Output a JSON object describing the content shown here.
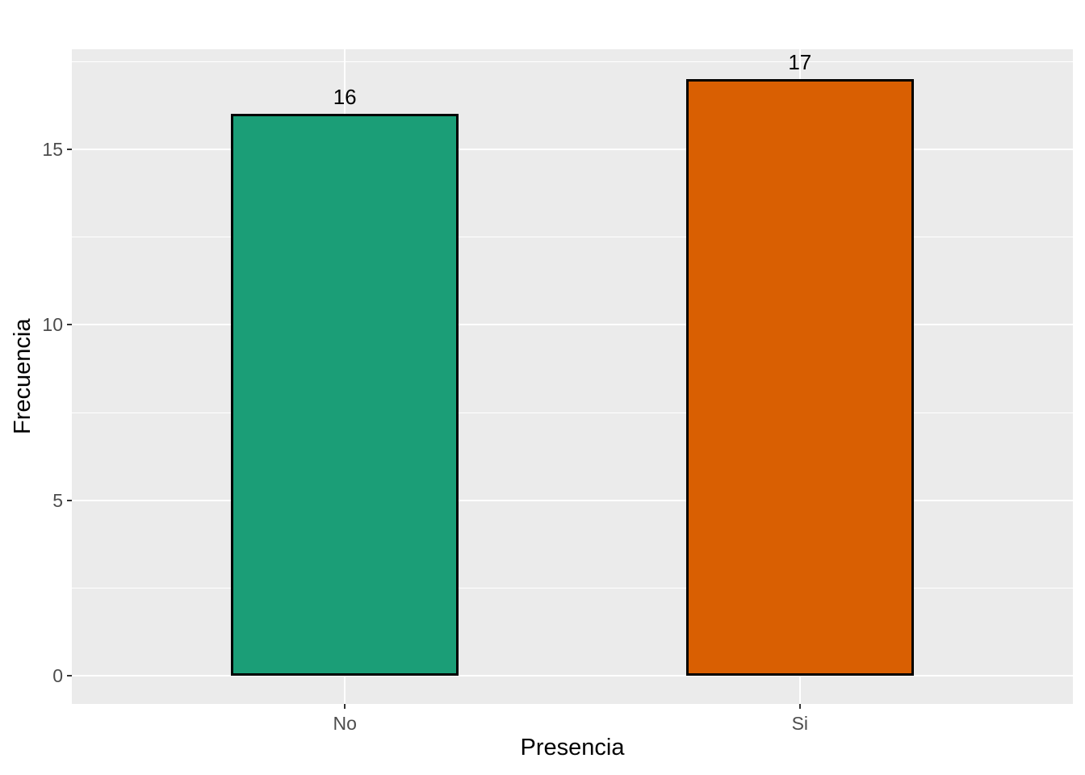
{
  "chart_data": {
    "type": "bar",
    "title": "",
    "xlabel": "Presencia",
    "ylabel": "Frecuencia",
    "categories": [
      "No",
      "Si"
    ],
    "values": [
      16,
      17
    ],
    "data_labels": [
      "16",
      "17"
    ],
    "bar_colors": [
      "#1B9E77",
      "#D95F02"
    ],
    "bar_border_color": "#000000",
    "ylim": [
      -0.8,
      17.85
    ],
    "y_major_ticks": [
      0,
      5,
      10,
      15
    ],
    "y_minor_gridlines": [
      2.5,
      7.5,
      12.5,
      17.5
    ],
    "grid": true,
    "legend": false,
    "style": {
      "panel_background": "#EBEBEB",
      "outer_background": "#FFFFFF",
      "grid_color": "#FFFFFF",
      "tick_mark_color": "#333333",
      "tick_label_color": "#4D4D4D",
      "axis_title_color": "#000000",
      "data_label_color": "#000000"
    }
  }
}
